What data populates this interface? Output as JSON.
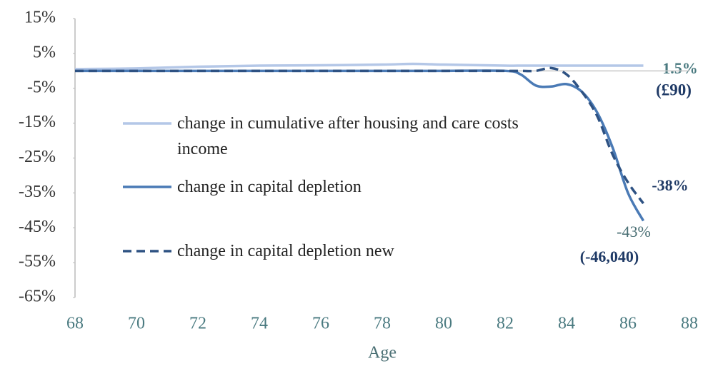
{
  "chart_data": {
    "type": "line",
    "x_label": "Age",
    "x": [
      68,
      70,
      72,
      74,
      76,
      78,
      79,
      80,
      82,
      82.5,
      83,
      83.5,
      84,
      84.5,
      85,
      85.5,
      86,
      86.5
    ],
    "series": [
      {
        "name": "change in cumulative after housing and care costs income",
        "color": "#b4c7e7",
        "dash": false,
        "values": [
          0.5,
          0.7,
          1.2,
          1.5,
          1.6,
          1.8,
          2,
          1.8,
          1.5,
          1.5,
          1.5,
          1.5,
          1.5,
          1.5,
          1.5,
          1.5,
          1.5,
          1.5
        ]
      },
      {
        "name": "change in capital depletion",
        "color": "#4a7ab5",
        "dash": false,
        "values": [
          0,
          0,
          0,
          0,
          0,
          0,
          0,
          0,
          0,
          -1,
          -4.2,
          -4.5,
          -3.8,
          -6,
          -12,
          -22,
          -35,
          -43
        ]
      },
      {
        "name": "change in capital depletion new",
        "color": "#2e5283",
        "dash": true,
        "values": [
          0,
          0,
          0,
          0,
          0,
          0,
          0,
          0,
          0,
          0,
          0,
          0.8,
          -1,
          -6,
          -13,
          -24,
          -32,
          -38
        ]
      }
    ],
    "annotations": [
      "1.5%",
      "(£90)",
      "-38%",
      "-43%",
      "(-46,040)"
    ],
    "xlim": [
      68,
      88
    ],
    "xticks": [
      68,
      70,
      72,
      74,
      76,
      78,
      80,
      82,
      84,
      86,
      88
    ],
    "ylim": [
      -65,
      15
    ],
    "yticks": [
      {
        "value": 15,
        "label": "15%"
      },
      {
        "value": 5,
        "label": "5%"
      },
      {
        "value": -5,
        "label": "-5%"
      },
      {
        "value": -15,
        "label": "-15%"
      },
      {
        "value": -25,
        "label": "-25%"
      },
      {
        "value": -35,
        "label": "-35%"
      },
      {
        "value": -45,
        "label": "-45%"
      },
      {
        "value": -55,
        "label": "-55%"
      },
      {
        "value": -65,
        "label": "-65%"
      }
    ],
    "grid": false
  }
}
